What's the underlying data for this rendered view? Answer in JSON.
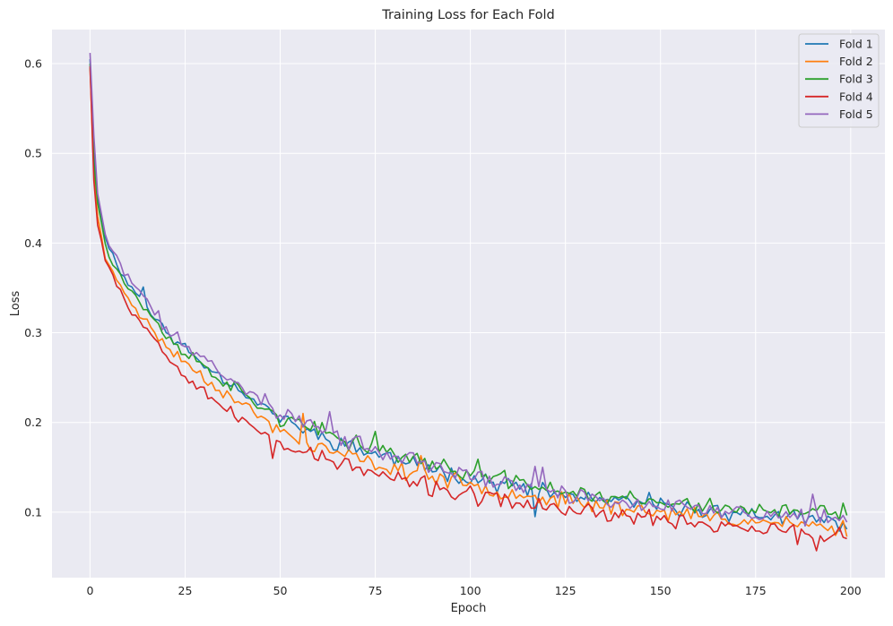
{
  "chart_data": {
    "type": "line",
    "title": "Training Loss for Each Fold",
    "xlabel": "Epoch",
    "ylabel": "Loss",
    "xlim": [
      -10,
      209
    ],
    "ylim": [
      0.027,
      0.638
    ],
    "xticks": [
      0,
      25,
      50,
      75,
      100,
      125,
      150,
      175,
      200
    ],
    "yticks": [
      0.1,
      0.2,
      0.3,
      0.4,
      0.5,
      0.6
    ],
    "xtick_labels": [
      "0",
      "25",
      "50",
      "75",
      "100",
      "125",
      "150",
      "175",
      "200"
    ],
    "ytick_labels": [
      "0.1",
      "0.2",
      "0.3",
      "0.4",
      "0.5",
      "0.6"
    ],
    "grid": true,
    "legend_position": "top-right",
    "epochs": 200,
    "series": [
      {
        "name": "Fold 1",
        "color": "#1f77b4",
        "anchors": [
          [
            0,
            0.605
          ],
          [
            1,
            0.5
          ],
          [
            2,
            0.45
          ],
          [
            4,
            0.41
          ],
          [
            6,
            0.385
          ],
          [
            10,
            0.355
          ],
          [
            15,
            0.33
          ],
          [
            20,
            0.3
          ],
          [
            30,
            0.265
          ],
          [
            40,
            0.235
          ],
          [
            50,
            0.205
          ],
          [
            60,
            0.185
          ],
          [
            75,
            0.165
          ],
          [
            100,
            0.138
          ],
          [
            125,
            0.118
          ],
          [
            150,
            0.106
          ],
          [
            175,
            0.097
          ],
          [
            199,
            0.087
          ]
        ],
        "noise": 0.011,
        "seed": 11,
        "spikes": [
          [
            14,
            0.351
          ],
          [
            117,
            0.095
          ],
          [
            147,
            0.122
          ]
        ]
      },
      {
        "name": "Fold 2",
        "color": "#ff7f0e",
        "anchors": [
          [
            0,
            0.595
          ],
          [
            1,
            0.48
          ],
          [
            2,
            0.43
          ],
          [
            4,
            0.385
          ],
          [
            6,
            0.365
          ],
          [
            10,
            0.34
          ],
          [
            15,
            0.31
          ],
          [
            20,
            0.285
          ],
          [
            30,
            0.25
          ],
          [
            40,
            0.22
          ],
          [
            50,
            0.19
          ],
          [
            60,
            0.172
          ],
          [
            75,
            0.153
          ],
          [
            100,
            0.13
          ],
          [
            125,
            0.112
          ],
          [
            150,
            0.1
          ],
          [
            175,
            0.09
          ],
          [
            199,
            0.082
          ]
        ],
        "noise": 0.011,
        "seed": 23,
        "spikes": [
          [
            56,
            0.21
          ],
          [
            87,
            0.163
          ]
        ]
      },
      {
        "name": "Fold 3",
        "color": "#2ca02c",
        "anchors": [
          [
            0,
            0.6
          ],
          [
            1,
            0.49
          ],
          [
            2,
            0.445
          ],
          [
            4,
            0.4
          ],
          [
            6,
            0.38
          ],
          [
            10,
            0.35
          ],
          [
            15,
            0.325
          ],
          [
            20,
            0.295
          ],
          [
            30,
            0.262
          ],
          [
            40,
            0.232
          ],
          [
            50,
            0.205
          ],
          [
            60,
            0.19
          ],
          [
            75,
            0.17
          ],
          [
            100,
            0.143
          ],
          [
            125,
            0.123
          ],
          [
            150,
            0.11
          ],
          [
            175,
            0.102
          ],
          [
            199,
            0.097
          ]
        ],
        "noise": 0.012,
        "seed": 37,
        "spikes": [
          [
            75,
            0.19
          ],
          [
            102,
            0.159
          ],
          [
            198,
            0.11
          ]
        ]
      },
      {
        "name": "Fold 4",
        "color": "#d62728",
        "anchors": [
          [
            0,
            0.597
          ],
          [
            1,
            0.47
          ],
          [
            2,
            0.42
          ],
          [
            4,
            0.385
          ],
          [
            6,
            0.365
          ],
          [
            10,
            0.33
          ],
          [
            15,
            0.305
          ],
          [
            20,
            0.275
          ],
          [
            30,
            0.235
          ],
          [
            40,
            0.2
          ],
          [
            50,
            0.178
          ],
          [
            60,
            0.162
          ],
          [
            75,
            0.142
          ],
          [
            100,
            0.118
          ],
          [
            125,
            0.103
          ],
          [
            150,
            0.092
          ],
          [
            175,
            0.082
          ],
          [
            199,
            0.072
          ]
        ],
        "noise": 0.012,
        "seed": 53,
        "spikes": [
          [
            48,
            0.16
          ],
          [
            191,
            0.057
          ],
          [
            186,
            0.064
          ]
        ]
      },
      {
        "name": "Fold 5",
        "color": "#9467bd",
        "anchors": [
          [
            0,
            0.612
          ],
          [
            1,
            0.52
          ],
          [
            2,
            0.455
          ],
          [
            4,
            0.41
          ],
          [
            6,
            0.388
          ],
          [
            10,
            0.362
          ],
          [
            15,
            0.335
          ],
          [
            20,
            0.305
          ],
          [
            30,
            0.27
          ],
          [
            40,
            0.24
          ],
          [
            50,
            0.212
          ],
          [
            60,
            0.193
          ],
          [
            75,
            0.168
          ],
          [
            100,
            0.14
          ],
          [
            125,
            0.12
          ],
          [
            150,
            0.107
          ],
          [
            175,
            0.098
          ],
          [
            199,
            0.09
          ]
        ],
        "noise": 0.012,
        "seed": 71,
        "spikes": [
          [
            46,
            0.232
          ],
          [
            63,
            0.212
          ],
          [
            117,
            0.151
          ],
          [
            119,
            0.15
          ],
          [
            190,
            0.12
          ]
        ]
      }
    ]
  }
}
